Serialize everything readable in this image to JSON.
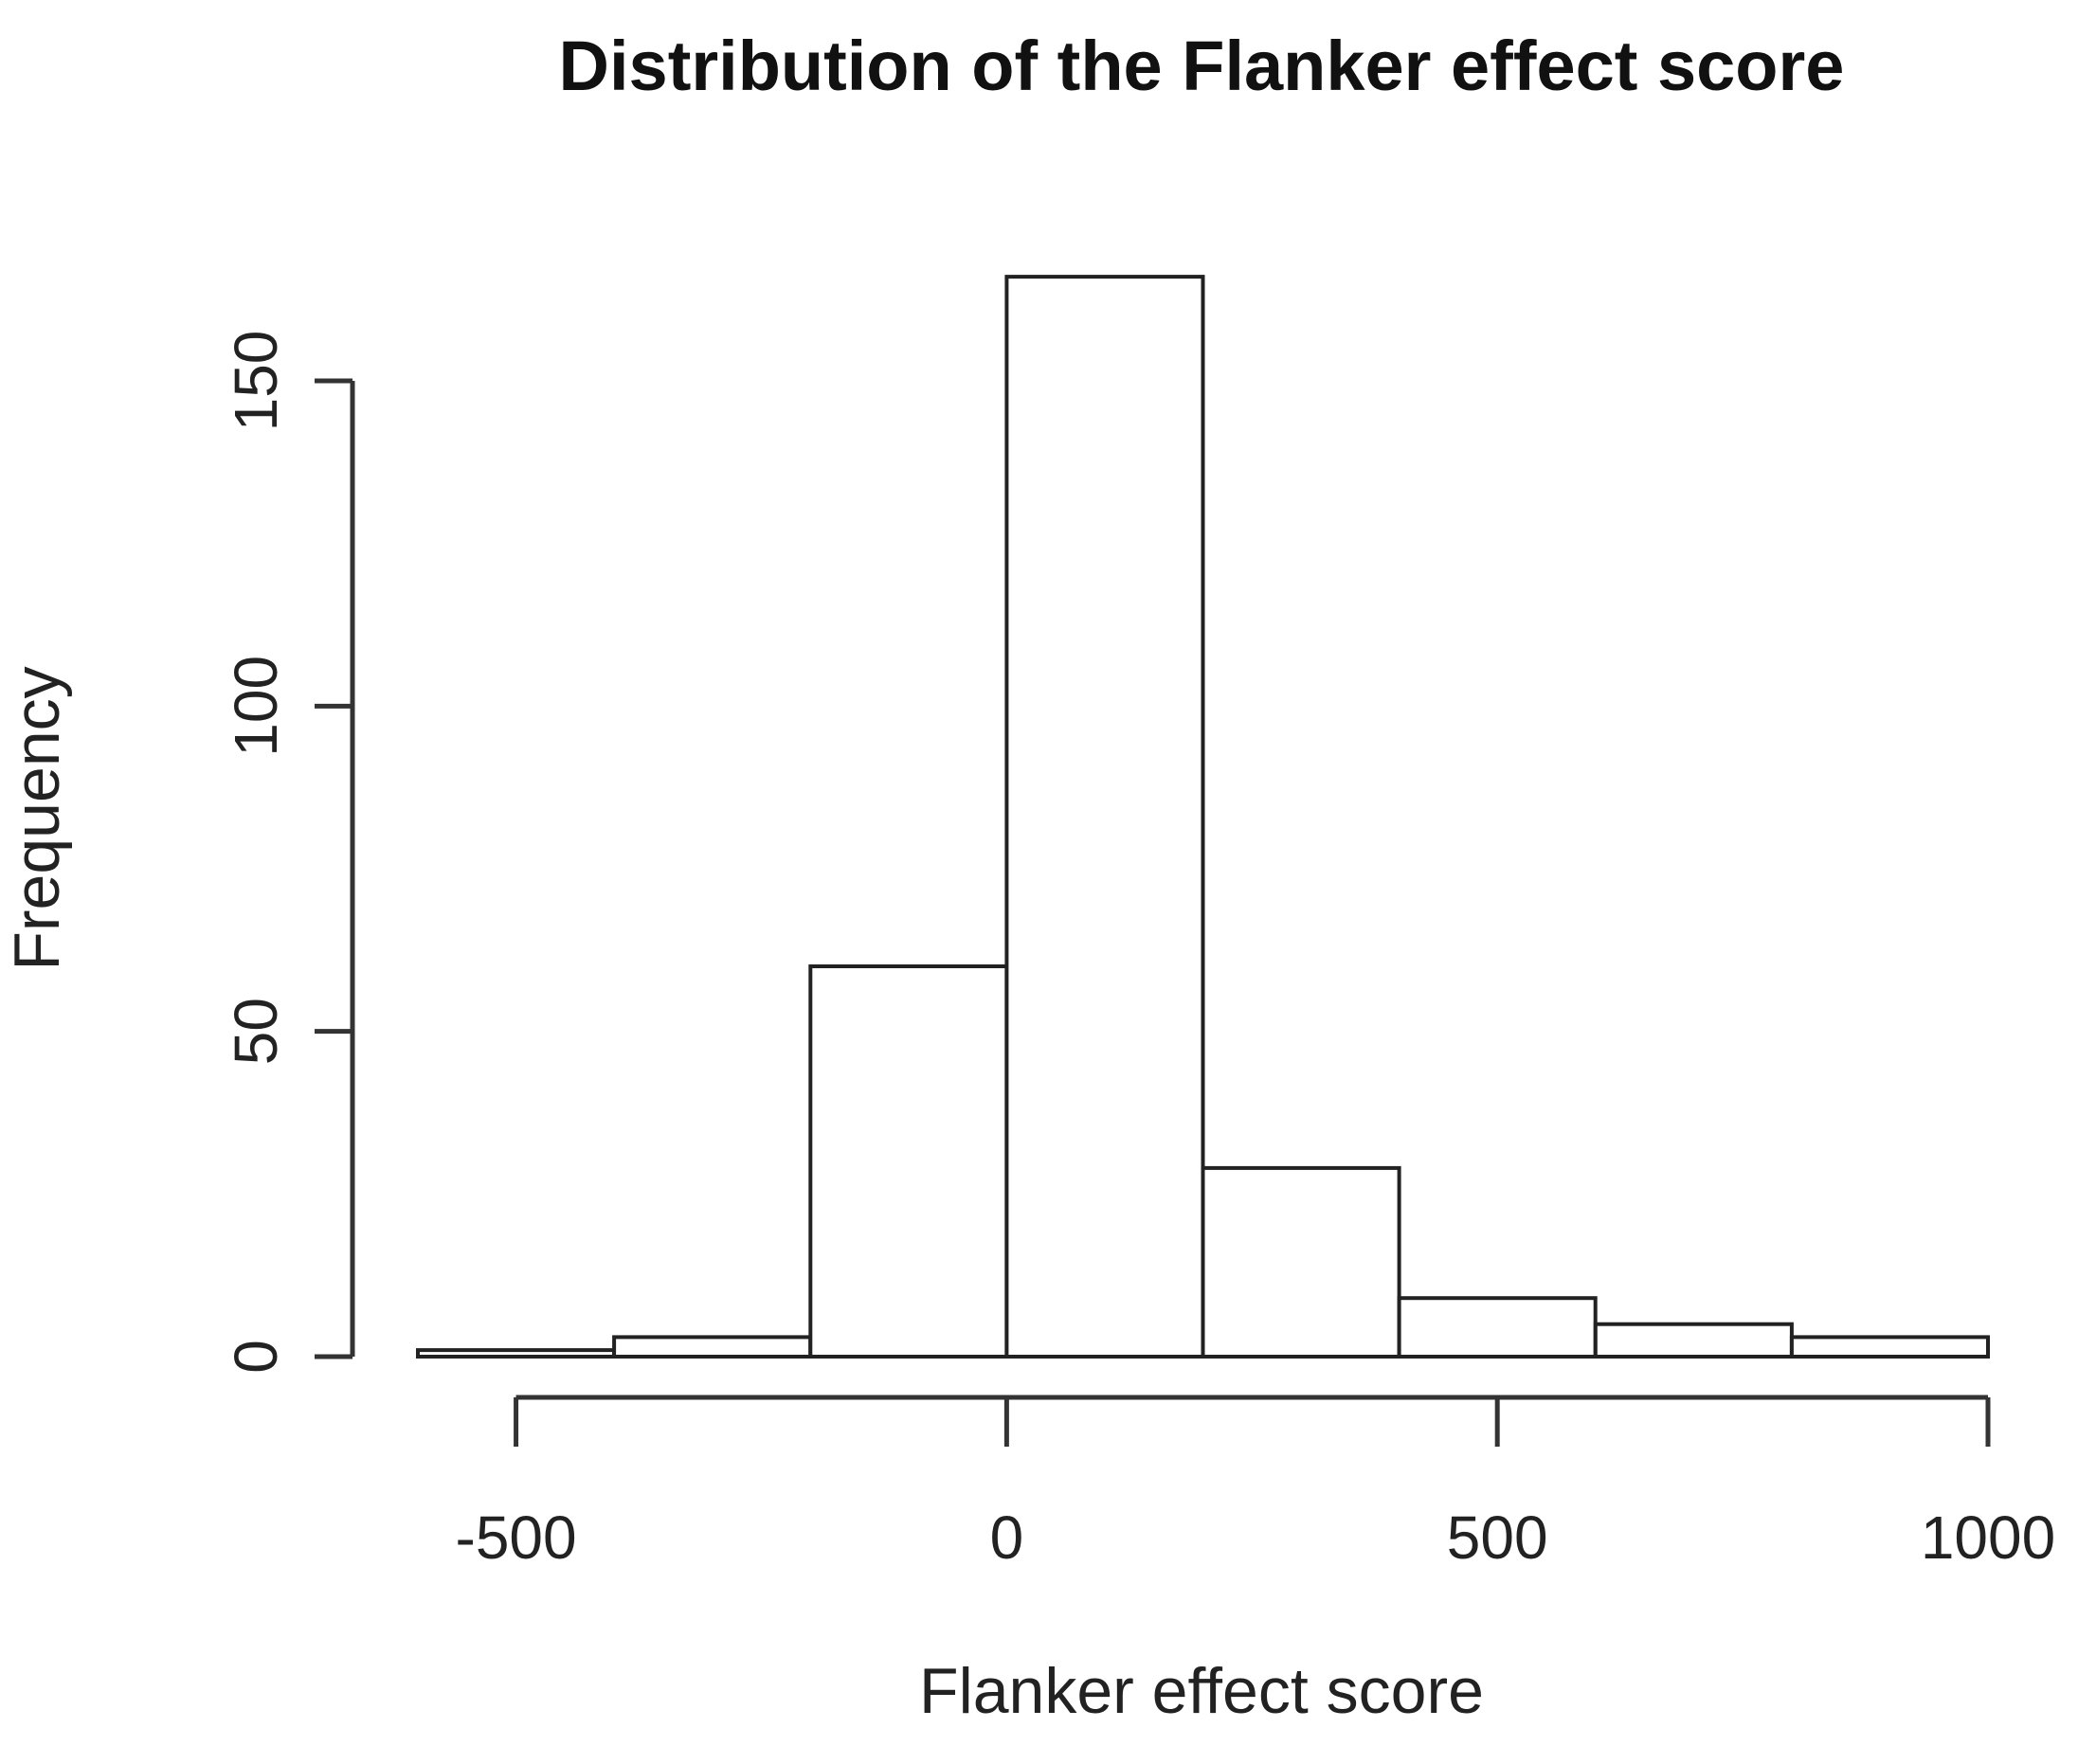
{
  "chart_data": {
    "type": "bar",
    "title": "Distribution of the Flanker effect score",
    "xlabel": "Flanker effect score",
    "ylabel": "Frequency",
    "bin_edges": [
      -600,
      -400,
      -200,
      0,
      200,
      400,
      600,
      800,
      1000
    ],
    "values": [
      1,
      3,
      60,
      166,
      29,
      9,
      5,
      3
    ],
    "xlim": [
      -600,
      1000
    ],
    "ylim": [
      0,
      166
    ],
    "x_ticks": [
      -500,
      0,
      500,
      1000
    ],
    "x_tick_labels": [
      "-500",
      "0",
      "500",
      "1000"
    ],
    "y_ticks": [
      0,
      50,
      100,
      150
    ],
    "y_tick_labels": [
      "0",
      "50",
      "100",
      "150"
    ],
    "grid": false,
    "legend": "none"
  }
}
